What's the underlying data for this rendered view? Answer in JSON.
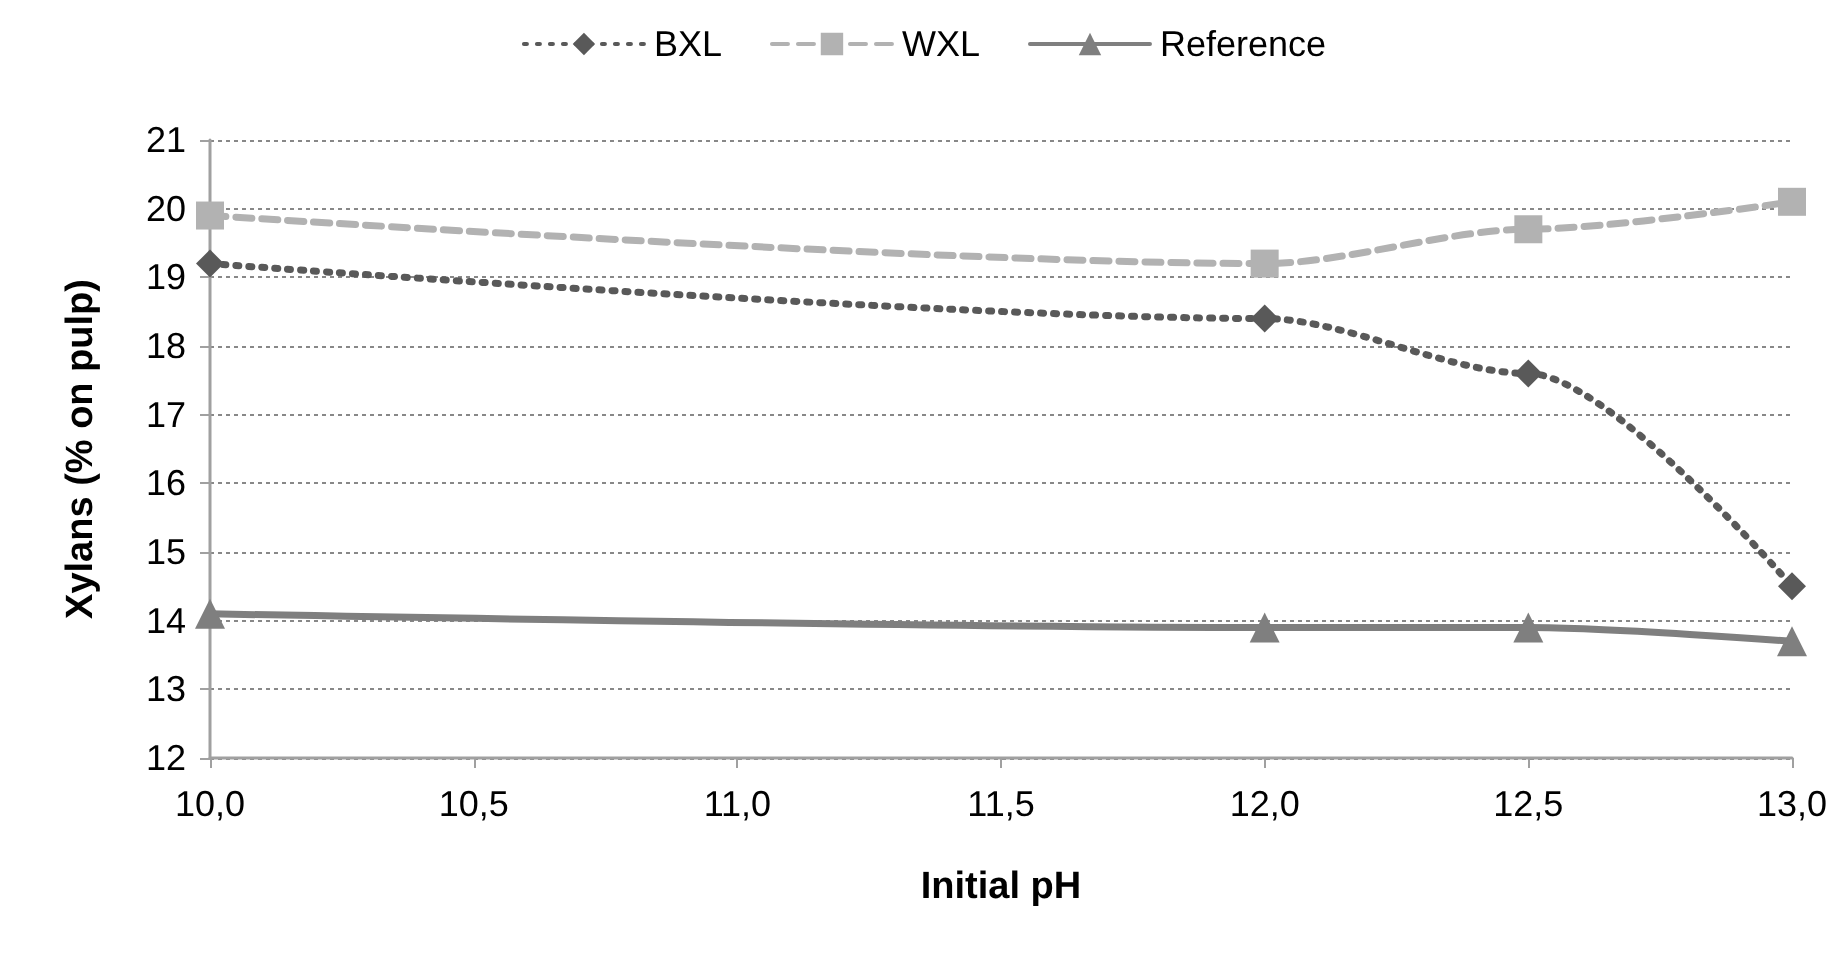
{
  "chart_data": {
    "type": "line",
    "xlabel": "Initial pH",
    "ylabel": "Xylans (% on pulp)",
    "x": [
      10,
      12,
      12.5,
      13
    ],
    "series": [
      {
        "name": "BXL",
        "color": "#595959",
        "values": [
          19.2,
          18.4,
          17.6,
          14.5
        ],
        "marker": "diamond",
        "line_style": "dotted"
      },
      {
        "name": "WXL",
        "color": "#b2b2b2",
        "values": [
          19.9,
          19.2,
          19.7,
          20.1
        ],
        "marker": "square",
        "line_style": "dashed"
      },
      {
        "name": "Reference",
        "color": "#7f7f7f",
        "values": [
          14.1,
          13.9,
          13.9,
          13.7
        ],
        "marker": "triangle",
        "line_style": "solid"
      }
    ],
    "xlim": [
      10,
      13
    ],
    "xticks": [
      {
        "value": 10,
        "label": "10,0"
      },
      {
        "value": 10.5,
        "label": "10,5"
      },
      {
        "value": 11,
        "label": "11,0"
      },
      {
        "value": 11.5,
        "label": "11,5"
      },
      {
        "value": 12,
        "label": "12,0"
      },
      {
        "value": 12.5,
        "label": "12,5"
      },
      {
        "value": 13,
        "label": "13,0"
      }
    ],
    "ylim": [
      12,
      21
    ],
    "yticks": [
      12,
      13,
      14,
      15,
      16,
      17,
      18,
      19,
      20,
      21
    ],
    "grid": "y",
    "legend": "top"
  }
}
